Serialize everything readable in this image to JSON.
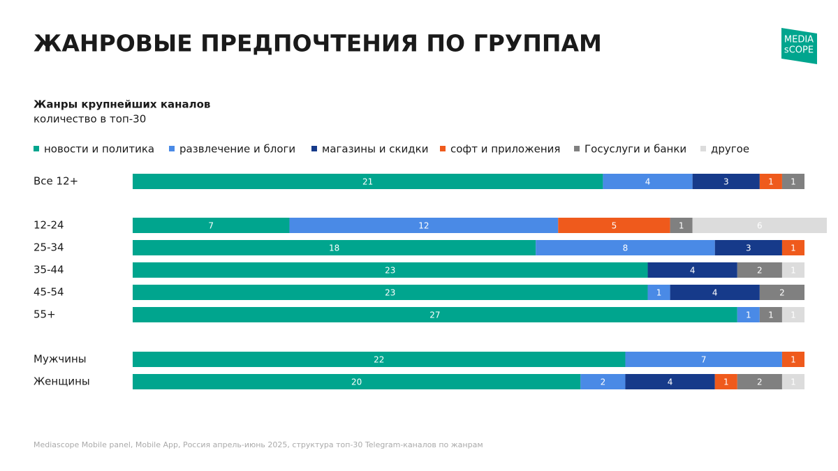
{
  "logo": [
    "MEDIA",
    "sCOPE"
  ],
  "chart_data": {
    "type": "stacked-barh",
    "title": "ЖАНРОВЫЕ ПРЕДПОЧТЕНИЯ ПО ГРУППАМ",
    "subtitle": "Жанры крупнейших каналов",
    "unit_note": "количество в топ-30",
    "source": "Mediascope Mobile panel, Mobile App, Россия апрель-июнь 2025, структура топ-30 Telegram-каналов по жанрам",
    "categories": [
      "Все 12+",
      "12-24",
      "25-34",
      "35-44",
      "45-54",
      "55+",
      "Мужчины",
      "Женщины"
    ],
    "xlim": [
      0,
      30
    ],
    "legend": "top",
    "series": [
      {
        "name": "новости и политика",
        "color": "#00a58e",
        "values": [
          21,
          7,
          18,
          23,
          23,
          27,
          22,
          20
        ]
      },
      {
        "name": "развлечение и блоги",
        "color": "#4a8ae6",
        "values": [
          4,
          12,
          8,
          null,
          1,
          1,
          7,
          2
        ]
      },
      {
        "name": "магазины и скидки",
        "color": "#163a8a",
        "values": [
          3,
          null,
          3,
          4,
          4,
          null,
          null,
          4
        ]
      },
      {
        "name": "софт и приложения",
        "color": "#ef5a1c",
        "values": [
          1,
          5,
          1,
          null,
          null,
          null,
          1,
          1
        ]
      },
      {
        "name": "Госуслуги и банки",
        "color": "#808080",
        "values": [
          1,
          1,
          null,
          2,
          2,
          1,
          null,
          2
        ]
      },
      {
        "name": "другое",
        "color": "#dcdcdc",
        "values": [
          null,
          6,
          null,
          1,
          null,
          1,
          null,
          1
        ]
      }
    ]
  }
}
